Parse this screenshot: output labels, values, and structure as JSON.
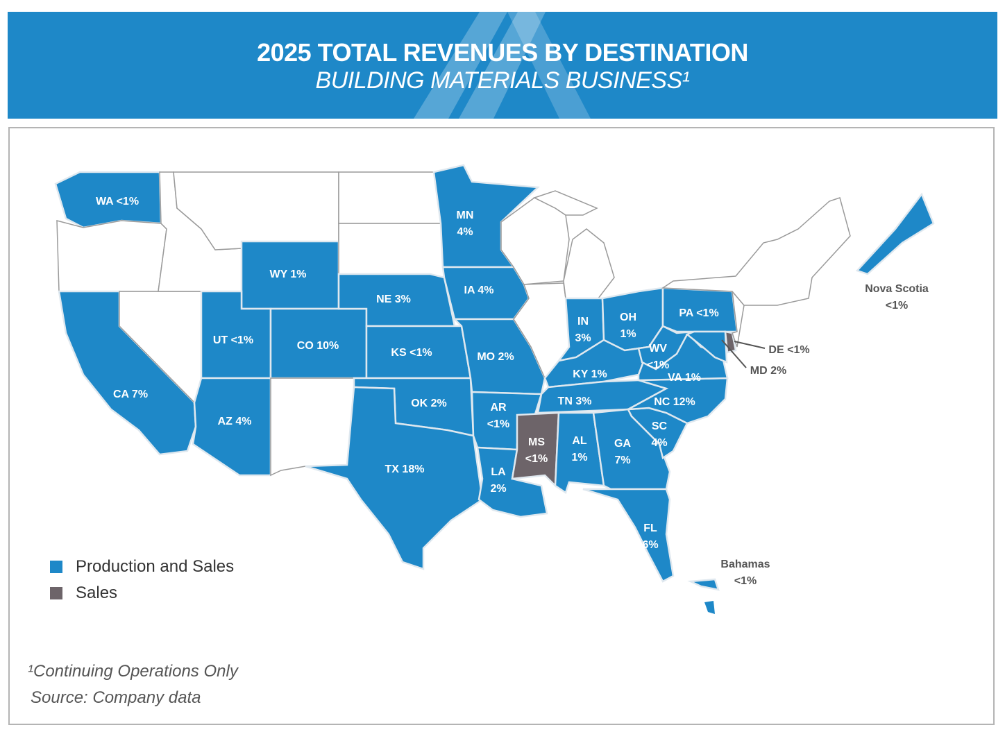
{
  "header": {
    "title": "2025 TOTAL REVENUES BY DESTINATION",
    "subtitle": "BUILDING MATERIALS BUSINESS¹"
  },
  "colors": {
    "production_and_sales": "#1e88c8",
    "sales": "#6d6469",
    "no_revenue": "#ffffff",
    "border": "#9a9a9a",
    "header": "#1e88c8"
  },
  "legend": [
    {
      "label": "Production and Sales",
      "category": "production_and_sales"
    },
    {
      "label": "Sales",
      "category": "sales"
    }
  ],
  "regions": [
    {
      "code": "WA",
      "value": "<1%",
      "category": "production_and_sales"
    },
    {
      "code": "CA",
      "value": "7%",
      "category": "production_and_sales"
    },
    {
      "code": "AZ",
      "value": "4%",
      "category": "production_and_sales"
    },
    {
      "code": "UT",
      "value": "<1%",
      "category": "production_and_sales"
    },
    {
      "code": "WY",
      "value": "1%",
      "category": "production_and_sales"
    },
    {
      "code": "CO",
      "value": "10%",
      "category": "production_and_sales"
    },
    {
      "code": "NE",
      "value": "3%",
      "category": "production_and_sales"
    },
    {
      "code": "KS",
      "value": "<1%",
      "category": "production_and_sales"
    },
    {
      "code": "OK",
      "value": "2%",
      "category": "production_and_sales"
    },
    {
      "code": "TX",
      "value": "18%",
      "category": "production_and_sales"
    },
    {
      "code": "MN",
      "value": "4%",
      "category": "production_and_sales"
    },
    {
      "code": "IA",
      "value": "4%",
      "category": "production_and_sales"
    },
    {
      "code": "MO",
      "value": "2%",
      "category": "production_and_sales"
    },
    {
      "code": "AR",
      "value": "<1%",
      "category": "production_and_sales"
    },
    {
      "code": "LA",
      "value": "2%",
      "category": "production_and_sales"
    },
    {
      "code": "MS",
      "value": "<1%",
      "category": "sales"
    },
    {
      "code": "AL",
      "value": "1%",
      "category": "production_and_sales"
    },
    {
      "code": "TN",
      "value": "3%",
      "category": "production_and_sales"
    },
    {
      "code": "KY",
      "value": "1%",
      "category": "production_and_sales"
    },
    {
      "code": "IN",
      "value": "3%",
      "category": "production_and_sales"
    },
    {
      "code": "OH",
      "value": "1%",
      "category": "production_and_sales"
    },
    {
      "code": "WV",
      "value": "<1%",
      "category": "production_and_sales"
    },
    {
      "code": "PA",
      "value": "<1%",
      "category": "production_and_sales"
    },
    {
      "code": "VA",
      "value": "1%",
      "category": "production_and_sales"
    },
    {
      "code": "NC",
      "value": "12%",
      "category": "production_and_sales"
    },
    {
      "code": "SC",
      "value": "4%",
      "category": "production_and_sales"
    },
    {
      "code": "GA",
      "value": "7%",
      "category": "production_and_sales"
    },
    {
      "code": "FL",
      "value": "6%",
      "category": "production_and_sales"
    },
    {
      "code": "MD",
      "value": "2%",
      "category": "production_and_sales"
    },
    {
      "code": "DE",
      "value": "<1%",
      "category": "sales"
    },
    {
      "code": "Nova Scotia",
      "value": "<1%",
      "category": "production_and_sales"
    },
    {
      "code": "Bahamas",
      "value": "<1%",
      "category": "production_and_sales"
    }
  ],
  "footnotes": {
    "note": "¹Continuing Operations Only",
    "source": "Source: Company data"
  }
}
